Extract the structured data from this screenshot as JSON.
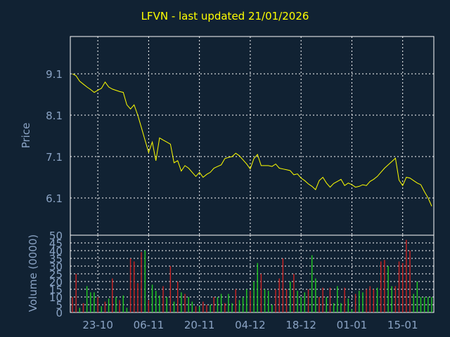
{
  "chart_data": [
    {
      "type": "line",
      "title": "LFVN - last updated 21/01/2026",
      "ylabel": "Price",
      "ylim": [
        5.2,
        10.0
      ],
      "yticks": [
        "6.1",
        "7.1",
        "8.1",
        "9.1"
      ],
      "grid": true,
      "colors": {
        "background": "#112233",
        "line": "#ffff00",
        "grid": "#ffffff",
        "axis_text": "#8aa3c4",
        "title": "#ffff00"
      },
      "series": [
        {
          "values": [
            9.1,
            9.05,
            8.92,
            8.85,
            8.78,
            8.72,
            8.65,
            8.7,
            8.75,
            8.9,
            8.78,
            8.73,
            8.7,
            8.67,
            8.65,
            8.35,
            8.25,
            8.35,
            8.1,
            7.8,
            7.5,
            7.2,
            7.45,
            7.0,
            7.55,
            7.5,
            7.45,
            7.4,
            6.95,
            7.0,
            6.75,
            6.88,
            6.82,
            6.72,
            6.62,
            6.72,
            6.6,
            6.67,
            6.72,
            6.82,
            6.86,
            6.9,
            7.05,
            7.08,
            7.1,
            7.18,
            7.12,
            7.02,
            6.92,
            6.8,
            7.05,
            7.15,
            6.88,
            6.88,
            6.88,
            6.86,
            6.92,
            6.82,
            6.8,
            6.78,
            6.76,
            6.66,
            6.68,
            6.58,
            6.52,
            6.44,
            6.38,
            6.3,
            6.52,
            6.6,
            6.46,
            6.36,
            6.45,
            6.5,
            6.55,
            6.4,
            6.46,
            6.42,
            6.36,
            6.38,
            6.42,
            6.4,
            6.5,
            6.55,
            6.62,
            6.72,
            6.82,
            6.9,
            6.98,
            7.06,
            6.53,
            6.4,
            6.6,
            6.58,
            6.52,
            6.46,
            6.42,
            6.25,
            6.1,
            5.9
          ]
        }
      ]
    },
    {
      "type": "bar",
      "ylabel": "Volume (0000)",
      "ylim": [
        0,
        50
      ],
      "yticks": [
        "0",
        "5",
        "10",
        "15",
        "20",
        "25",
        "30",
        "35",
        "40",
        "45",
        "50"
      ],
      "xticks": [
        {
          "label": "23-10",
          "index": 7
        },
        {
          "label": "06-11",
          "index": 21
        },
        {
          "label": "20-11",
          "index": 35
        },
        {
          "label": "04-12",
          "index": 49
        },
        {
          "label": "18-12",
          "index": 63
        },
        {
          "label": "01-01",
          "index": 77
        },
        {
          "label": "15-01",
          "index": 91
        }
      ],
      "colors": {
        "up": "#22cc22",
        "down": "#cc2222"
      },
      "values": [
        10,
        25,
        3,
        6,
        17,
        13,
        13,
        10,
        4,
        7,
        9,
        22,
        10,
        8,
        11,
        3,
        35,
        33,
        19,
        39,
        40,
        8,
        18,
        14,
        11,
        17,
        10,
        30,
        7,
        20,
        13,
        12,
        10,
        7,
        4,
        4,
        7,
        5,
        5,
        10,
        10,
        12,
        6,
        12,
        6,
        15,
        8,
        10,
        15,
        14,
        20,
        32,
        25,
        15,
        14,
        5,
        15,
        22,
        35,
        15,
        20,
        25,
        14,
        10,
        13,
        15,
        37,
        22,
        10,
        16,
        10,
        16,
        6,
        17,
        6,
        16,
        9,
        2,
        12,
        14,
        13,
        15,
        17,
        15,
        16,
        33,
        34,
        30,
        17,
        17,
        33,
        32,
        47,
        40,
        12,
        20,
        10,
        10,
        10,
        10
      ],
      "directions": [
        "d",
        "d",
        "u",
        "d",
        "u",
        "u",
        "u",
        "d",
        "u",
        "d",
        "u",
        "d",
        "u",
        "d",
        "u",
        "u",
        "d",
        "d",
        "d",
        "d",
        "u",
        "d",
        "u",
        "u",
        "u",
        "d",
        "u",
        "d",
        "u",
        "d",
        "u",
        "d",
        "u",
        "u",
        "d",
        "u",
        "d",
        "d",
        "u",
        "d",
        "u",
        "u",
        "d",
        "u",
        "u",
        "d",
        "u",
        "u",
        "u",
        "d",
        "u",
        "u",
        "d",
        "u",
        "u",
        "u",
        "d",
        "d",
        "d",
        "d",
        "u",
        "d",
        "u",
        "u",
        "u",
        "d",
        "u",
        "u",
        "d",
        "d",
        "u",
        "d",
        "u",
        "u",
        "u",
        "d",
        "u",
        "u",
        "d",
        "u",
        "u",
        "d",
        "d",
        "d",
        "u",
        "d",
        "d",
        "u",
        "u",
        "d",
        "d",
        "d",
        "d",
        "d",
        "u",
        "u",
        "u",
        "u",
        "u",
        "u"
      ]
    }
  ]
}
